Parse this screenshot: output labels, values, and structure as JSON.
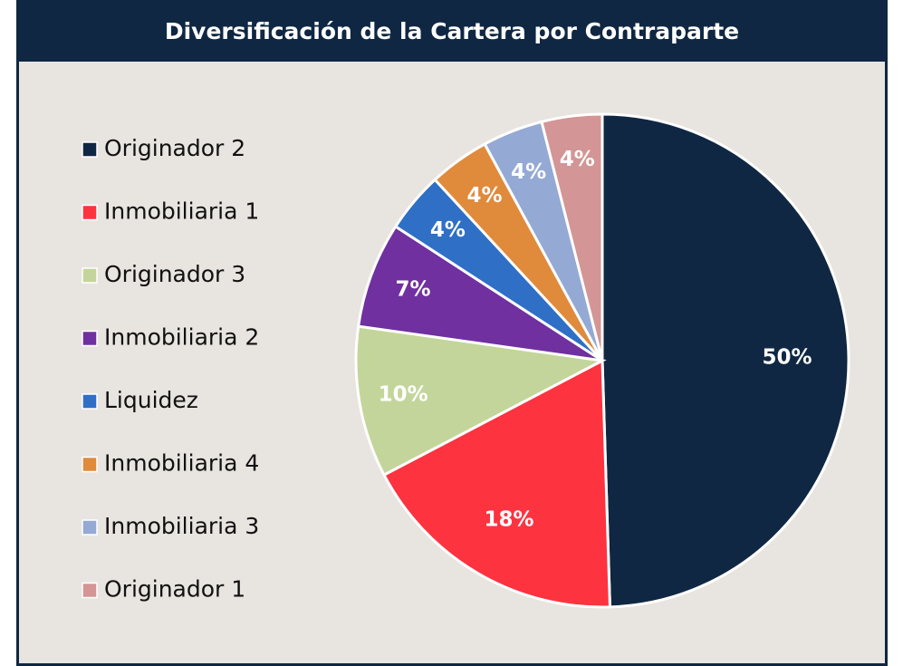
{
  "chart_data": {
    "type": "pie",
    "title": "Diversificación de la Cartera por Contraparte",
    "categories": [
      "Originador 2",
      "Inmobiliaria 1",
      "Originador 3",
      "Inmobiliaria 2",
      "Liquidez",
      "Inmobiliaria 4",
      "Inmobiliaria 3",
      "Originador 1"
    ],
    "values": [
      50,
      18,
      10,
      7,
      4,
      4,
      4,
      4
    ],
    "value_labels": [
      "50%",
      "18%",
      "10%",
      "7%",
      "4%",
      "4%",
      "4%",
      "4%"
    ],
    "colors": [
      "#0f2742",
      "#fe3340",
      "#c4d59b",
      "#7030a0",
      "#2f6fc6",
      "#e08a3c",
      "#94aad4",
      "#d39595"
    ],
    "legend": "left"
  }
}
